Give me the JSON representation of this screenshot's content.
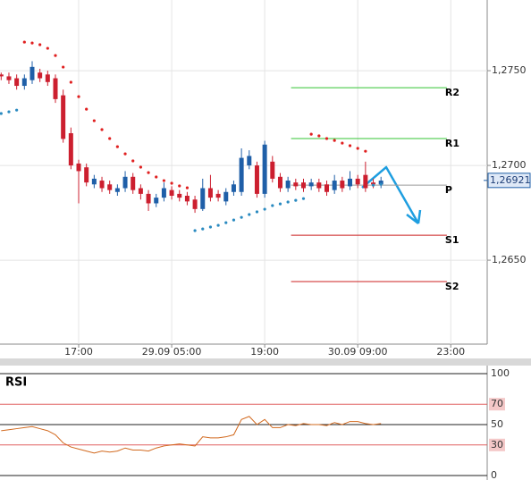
{
  "chart_data": [
    {
      "type": "candlestick",
      "xlim": [
        -0.15,
        62.7
      ],
      "xticks": [
        {
          "value": 10,
          "label": "17:00"
        },
        {
          "value": 22,
          "label": "29.09 05:00"
        },
        {
          "value": 34,
          "label": "19:00"
        },
        {
          "value": 46,
          "label": "30.09 09:00"
        },
        {
          "value": 58,
          "label": "23:00"
        }
      ],
      "ylim": [
        1.26057,
        1.27873
      ],
      "yticks": [
        {
          "value": 1.265,
          "label": "1,2650"
        },
        {
          "value": 1.27,
          "label": "1,2700"
        },
        {
          "value": 1.275,
          "label": "1,2750"
        }
      ],
      "grid": true,
      "up_color": "#1f5fa8",
      "down_color": "#cc1f2f",
      "open": [
        1.2748,
        1.2747,
        1.2746,
        1.2742,
        1.2745,
        1.2749,
        1.2748,
        1.2746,
        1.2737,
        1.2717,
        1.2701,
        1.2699,
        1.269,
        1.2692,
        1.269,
        1.2686,
        1.2688,
        1.2694,
        1.2688,
        1.2685,
        1.268,
        1.2683,
        1.2687,
        1.2685,
        1.2684,
        1.2682,
        1.2677,
        1.2688,
        1.2685,
        1.2681,
        1.2686,
        1.2686,
        1.27,
        1.27,
        1.2685,
        1.2702,
        1.2694,
        1.2688,
        1.2691,
        1.2691,
        1.2689,
        1.2691,
        1.269,
        1.2687,
        1.2692,
        1.2689,
        1.2693,
        1.2695,
        1.2691,
        1.269
      ],
      "high": [
        1.2749,
        1.2749,
        1.2748,
        1.2748,
        1.2755,
        1.2751,
        1.275,
        1.2748,
        1.274,
        1.272,
        1.2703,
        1.2701,
        1.2695,
        1.2694,
        1.2692,
        1.269,
        1.2697,
        1.2696,
        1.269,
        1.2687,
        1.2685,
        1.2691,
        1.2689,
        1.2687,
        1.2686,
        1.2684,
        1.2693,
        1.2695,
        1.2687,
        1.2688,
        1.2692,
        1.2709,
        1.2708,
        1.2702,
        1.2713,
        1.2705,
        1.2696,
        1.2694,
        1.2693,
        1.2693,
        1.2693,
        1.2693,
        1.2692,
        1.2695,
        1.2694,
        1.2697,
        1.2695,
        1.2702,
        1.2693,
        1.2694
      ],
      "low": [
        1.2745,
        1.2743,
        1.274,
        1.274,
        1.2743,
        1.2744,
        1.2742,
        1.2733,
        1.2712,
        1.2698,
        1.268,
        1.2689,
        1.2688,
        1.2686,
        1.2685,
        1.2684,
        1.2686,
        1.2685,
        1.2682,
        1.2676,
        1.2678,
        1.2681,
        1.2682,
        1.2681,
        1.2679,
        1.2675,
        1.2676,
        1.2681,
        1.2681,
        1.2679,
        1.2684,
        1.2684,
        1.2698,
        1.2683,
        1.2683,
        1.2691,
        1.2686,
        1.2686,
        1.2687,
        1.2686,
        1.2687,
        1.2686,
        1.2684,
        1.2685,
        1.2686,
        1.2687,
        1.2688,
        1.2686,
        1.2688,
        1.2688
      ],
      "close": [
        1.2747,
        1.2745,
        1.2742,
        1.2746,
        1.2752,
        1.2746,
        1.2744,
        1.2735,
        1.2714,
        1.27,
        1.2697,
        1.2691,
        1.2693,
        1.2688,
        1.2687,
        1.2688,
        1.2694,
        1.2687,
        1.2685,
        1.268,
        1.2683,
        1.2688,
        1.2684,
        1.2683,
        1.2681,
        1.2677,
        1.2688,
        1.2683,
        1.2683,
        1.2686,
        1.269,
        1.2704,
        1.2705,
        1.2685,
        1.2711,
        1.2693,
        1.2688,
        1.2692,
        1.2689,
        1.2688,
        1.2691,
        1.2688,
        1.2686,
        1.2692,
        1.2688,
        1.2693,
        1.269,
        1.2688,
        1.269,
        1.2692
      ],
      "sar": [
        {
          "color": "#e02020",
          "values": [
            null,
            null,
            null,
            1.27651,
            1.27646,
            1.27637,
            1.27618,
            1.2758,
            1.27519,
            1.27439,
            1.27363,
            1.27297,
            1.27236,
            1.27189,
            1.27142,
            1.27099,
            1.27061,
            1.27024,
            1.26991,
            1.26962,
            1.26939,
            1.2692,
            1.26906,
            1.26892,
            1.26882,
            null,
            null,
            null,
            null,
            null,
            null,
            null,
            null,
            null,
            null,
            null,
            null,
            null,
            null,
            null,
            1.27165,
            1.27156,
            1.27142,
            1.27132,
            1.27118,
            1.27104,
            1.2709,
            1.27075,
            null,
            null
          ]
        },
        {
          "color": "#2a8ac0",
          "values": [
            1.27274,
            1.27283,
            1.27292,
            null,
            null,
            null,
            null,
            null,
            null,
            null,
            null,
            null,
            null,
            null,
            null,
            null,
            null,
            null,
            null,
            null,
            null,
            null,
            null,
            null,
            null,
            1.26656,
            1.26665,
            1.26675,
            1.26684,
            1.26698,
            1.26712,
            1.26726,
            1.26741,
            1.26755,
            1.26769,
            1.26788,
            1.26797,
            1.26807,
            1.26816,
            1.26825,
            null,
            null,
            null,
            null,
            null,
            null,
            null,
            null,
            1.26896,
            1.26901
          ]
        }
      ],
      "pivots": [
        {
          "name": "R2",
          "value": 1.2741,
          "color": "#33c433"
        },
        {
          "name": "R1",
          "value": 1.27142,
          "color": "#33c433"
        },
        {
          "name": "P",
          "value": 1.26896,
          "color": "#9a9a9a"
        },
        {
          "name": "S1",
          "value": 1.26632,
          "color": "#cc2222"
        },
        {
          "name": "S2",
          "value": 1.26387,
          "color": "#cc2222"
        }
      ],
      "pivot_start": 37.4,
      "pivot_end": 57.5,
      "last_price": {
        "value": 1.26921,
        "label": "1,26921"
      }
    },
    {
      "type": "line",
      "title": "RSI",
      "ylim": [
        0,
        100
      ],
      "yticks": [
        0,
        30,
        50,
        70,
        100
      ],
      "color": "#d2691e",
      "values": [
        44,
        45,
        46,
        47,
        48,
        46,
        44,
        40,
        32,
        28,
        26,
        24,
        22,
        24,
        23,
        24,
        27,
        25,
        25,
        24,
        27,
        29,
        30,
        31,
        30,
        29,
        38,
        37,
        37,
        38,
        40,
        55,
        58,
        50,
        55,
        47,
        47,
        50,
        49,
        51,
        50,
        50,
        49,
        52,
        50,
        53,
        53,
        51,
        50,
        51
      ]
    }
  ]
}
